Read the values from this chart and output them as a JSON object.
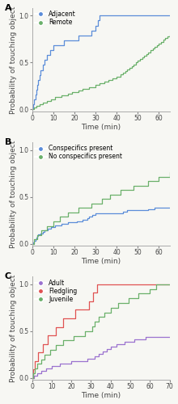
{
  "panel_A": {
    "label": "A",
    "ylabel": "Probability of touching object",
    "xlabel": "Time (min)",
    "xlim": [
      0,
      65
    ],
    "ylim": [
      -0.02,
      1.08
    ],
    "xticks": [
      0,
      10,
      20,
      30,
      40,
      50,
      60
    ],
    "yticks": [
      0.0,
      0.5,
      1.0
    ],
    "series": [
      {
        "name": "Adjacent",
        "color": "#5b8dd9",
        "N": 19,
        "times": [
          0.5,
          1.0,
          1.5,
          2.0,
          2.5,
          3.0,
          3.5,
          4.0,
          5.0,
          6.0,
          7.0,
          8.5,
          10.0,
          15.0,
          22.0,
          28.0,
          30.0,
          31.0,
          32.0
        ]
      },
      {
        "name": "Remote",
        "color": "#6ab06a",
        "N": 54,
        "times": [
          1.0,
          2.0,
          3.5,
          5.0,
          7.0,
          9.0,
          11.0,
          14.0,
          17.0,
          19.0,
          22.0,
          24.0,
          27.0,
          30.0,
          32.0,
          34.0,
          36.0,
          38.0,
          40.0,
          42.0,
          43.0,
          44.0,
          45.0,
          46.0,
          47.0,
          48.0,
          49.0,
          50.0,
          51.0,
          52.0,
          53.0,
          54.0,
          55.0,
          56.0,
          57.0,
          58.0,
          59.0,
          60.0,
          61.0,
          62.0,
          63.0,
          64.0,
          65.0
        ]
      }
    ]
  },
  "panel_B": {
    "label": "B",
    "ylabel": "Probability of touching object",
    "xlabel": "Time (min)",
    "xlim": [
      0,
      65
    ],
    "ylim": [
      -0.02,
      1.08
    ],
    "xticks": [
      0,
      10,
      20,
      30,
      40,
      50,
      60
    ],
    "yticks": [
      0.0,
      0.5,
      1.0
    ],
    "series": [
      {
        "name": "Conspecifics present",
        "color": "#5b8dd9",
        "N": 62,
        "times": [
          0.5,
          1.0,
          1.5,
          2.0,
          2.5,
          3.0,
          4.0,
          5.0,
          6.0,
          7.5,
          9.0,
          11.0,
          14.0,
          17.0,
          21.0,
          24.0,
          26.0,
          27.0,
          28.5,
          30.0,
          43.0,
          45.0,
          55.0,
          58.0
        ]
      },
      {
        "name": "No conspecifics present",
        "color": "#6ab06a",
        "N": 21,
        "times": [
          1.0,
          2.5,
          4.5,
          7.0,
          10.0,
          13.0,
          17.0,
          22.0,
          28.0,
          33.0,
          37.0,
          42.0,
          48.0,
          55.0,
          60.0,
          65.0,
          70.0
        ]
      }
    ]
  },
  "panel_C": {
    "label": "C",
    "ylabel": "Probability of touching object",
    "xlabel": "Time (min)",
    "xlim": [
      0,
      70
    ],
    "ylim": [
      -0.02,
      1.08
    ],
    "xticks": [
      0,
      10,
      20,
      30,
      40,
      50,
      60,
      70
    ],
    "yticks": [
      0.0,
      0.5,
      1.0
    ],
    "series": [
      {
        "name": "Adult",
        "color": "#9b72cf",
        "N": 39,
        "times": [
          1.0,
          2.5,
          4.5,
          7.0,
          10.0,
          14.0,
          20.0,
          28.0,
          32.0,
          34.0,
          36.0,
          38.0,
          40.0,
          43.0,
          47.0,
          52.0,
          58.0
        ]
      },
      {
        "name": "Fledgling",
        "color": "#e05252",
        "N": 11,
        "times": [
          0.5,
          1.5,
          3.0,
          5.5,
          8.0,
          12.0,
          16.0,
          22.0,
          29.0,
          31.0,
          33.0
        ]
      },
      {
        "name": "Juvenile",
        "color": "#6ab06a",
        "N": 20,
        "times": [
          0.5,
          1.2,
          2.5,
          4.5,
          6.5,
          9.0,
          12.0,
          16.0,
          21.0,
          27.0,
          30.5,
          32.0,
          34.0,
          37.0,
          40.0,
          44.0,
          49.0,
          54.0,
          60.0,
          63.0
        ]
      }
    ]
  },
  "fig_width": 2.2,
  "fig_height": 5.0,
  "dpi": 100,
  "bg_color": "#f7f7f3",
  "axes_bg": "#f7f7f3",
  "label_fontsize": 6.5,
  "tick_fontsize": 5.5,
  "legend_fontsize": 5.5,
  "line_width": 0.9
}
